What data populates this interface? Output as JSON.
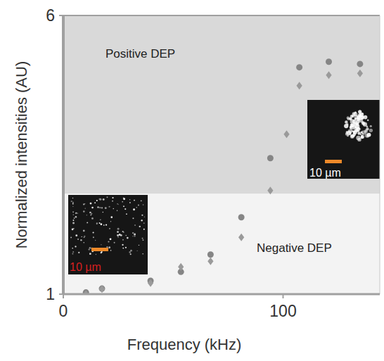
{
  "chart_data": {
    "type": "scatter",
    "x_label": "Frequency (kHz)",
    "y_label": "Normalized intensities (AU)",
    "xlim": [
      0,
      144
    ],
    "xticks": [
      0,
      100
    ],
    "ylim": [
      1,
      6
    ],
    "yticks": [
      1,
      6
    ],
    "grid": false,
    "series": [
      {
        "color": "#858585",
        "marker": "circle",
        "x": [
          10.3,
          17.6,
          39.7,
          53.5,
          67,
          81,
          94.2,
          107.4,
          120.8,
          135
        ],
        "values": [
          1.03,
          1.1,
          1.24,
          1.4,
          1.71,
          2.38,
          3.44,
          5.07,
          5.17,
          5.13
        ]
      },
      {
        "color": "#9a9a9a",
        "marker": "diamond",
        "x": [
          10.3,
          17.6,
          39.7,
          53.5,
          67,
          81,
          94.2,
          101.6,
          107.4,
          120.8,
          135
        ],
        "values": [
          1.0,
          1.09,
          1.2,
          1.49,
          1.59,
          2.02,
          2.86,
          3.87,
          4.74,
          4.93,
          4.96
        ]
      }
    ],
    "regions": [
      {
        "label": "Positive DEP",
        "from": 2.8,
        "to": 6,
        "color": "#d9d9d9"
      },
      {
        "label": "Negative DEP",
        "from": 1,
        "to": 2.8,
        "color": "#f3f3f3"
      }
    ],
    "insets": [
      {
        "label": "10 µm",
        "color": "#d62020"
      },
      {
        "label": "10 µm",
        "color": "#ffffff"
      }
    ]
  }
}
